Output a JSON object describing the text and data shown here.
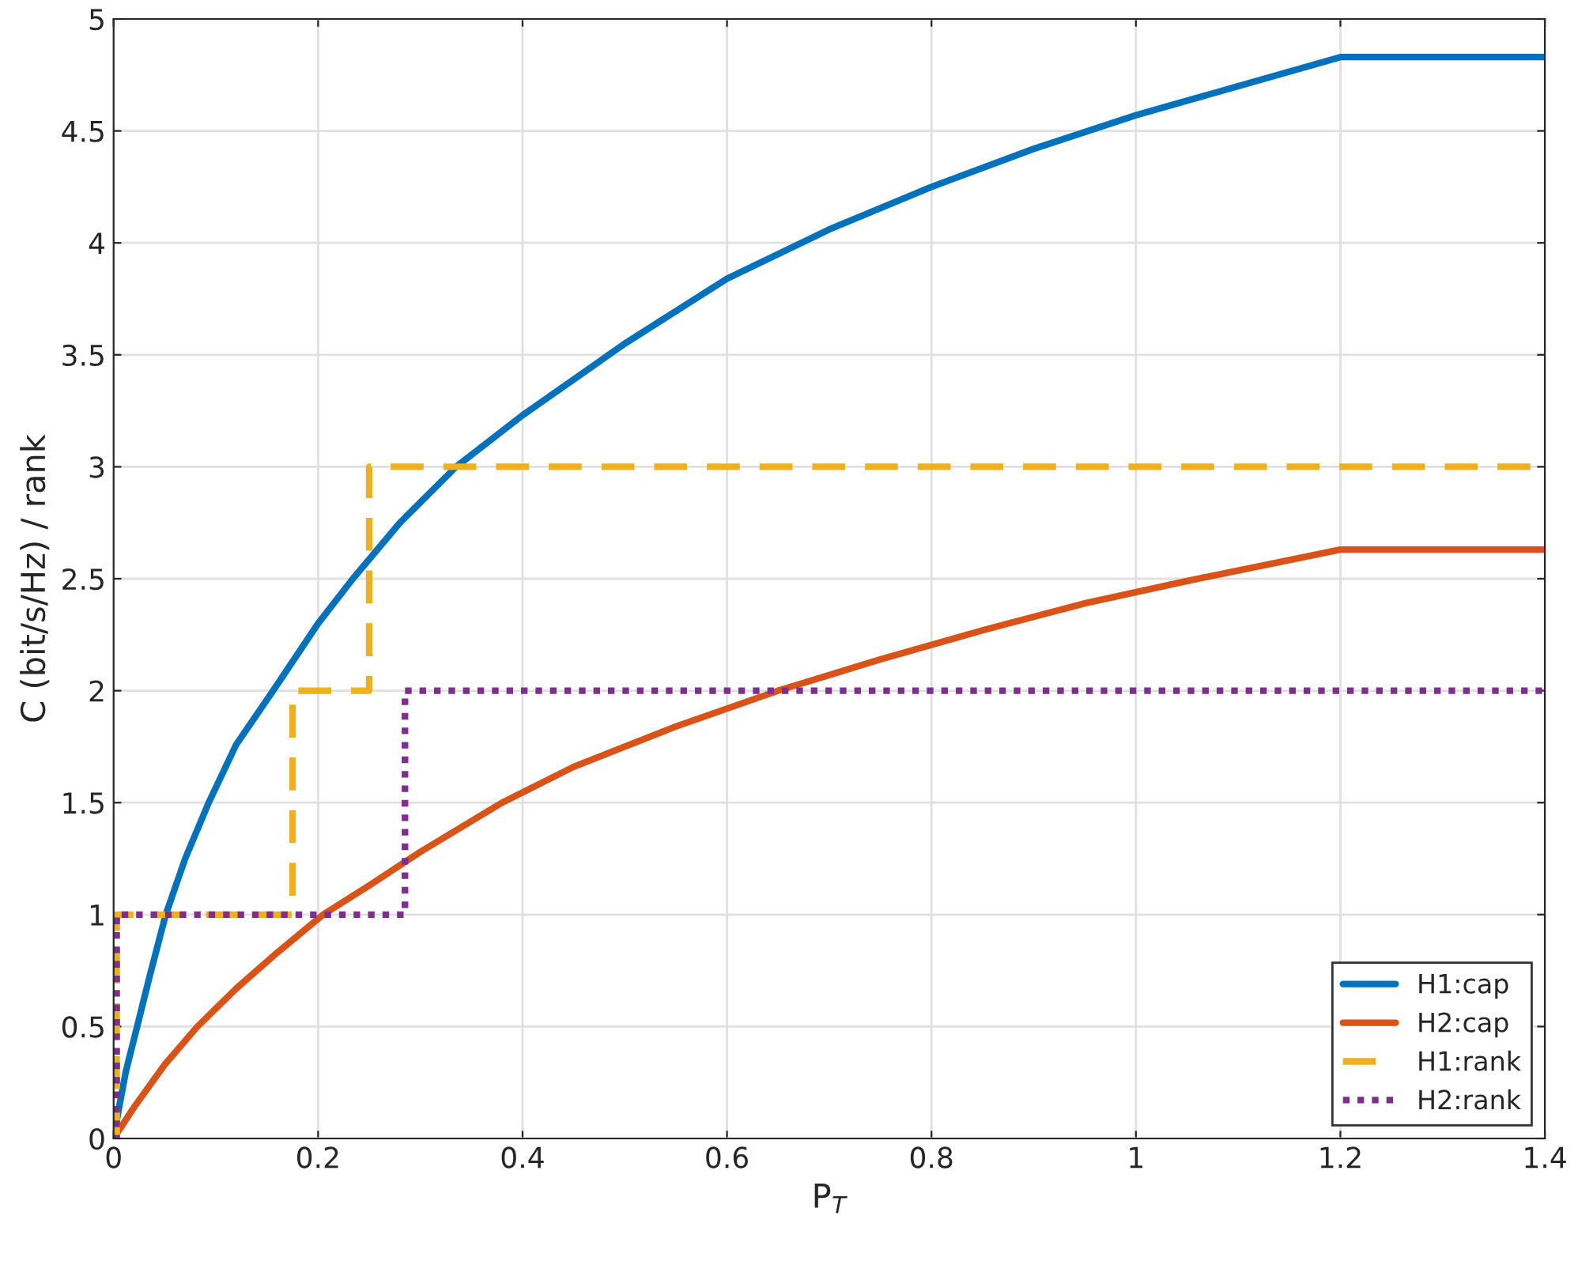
{
  "chart_data": {
    "type": "line",
    "xlabel": "P$_{T}$",
    "ylabel": "C (bit/s/Hz) / rank",
    "xlim": [
      0,
      1.4
    ],
    "xticks": [
      0,
      0.2,
      0.4,
      0.6,
      0.8,
      1,
      1.2,
      1.4
    ],
    "ylim": [
      0,
      5
    ],
    "yticks": [
      0,
      0.5,
      1,
      1.5,
      2,
      2.5,
      3,
      3.5,
      4,
      4.5,
      5
    ],
    "grid": true,
    "legend": "bottom right",
    "series": [
      {
        "name": "H1:cap",
        "color": "#0072bd",
        "line_style": "solid",
        "x": [
          0,
          0.005,
          0.012,
          0.023,
          0.035,
          0.051,
          0.07,
          0.093,
          0.12,
          0.156,
          0.2,
          0.234,
          0.28,
          0.335,
          0.4,
          0.5,
          0.6,
          0.7,
          0.8,
          0.9,
          1.0,
          1.1,
          1.2,
          1.4
        ],
        "values": [
          0,
          0.13,
          0.3,
          0.5,
          0.72,
          1.0,
          1.25,
          1.5,
          1.76,
          2.0,
          2.3,
          2.5,
          2.75,
          3.0,
          3.23,
          3.55,
          3.84,
          4.06,
          4.25,
          4.42,
          4.57,
          4.7,
          4.83,
          4.83
        ]
      },
      {
        "name": "H2:cap",
        "color": "#d95319",
        "line_style": "solid",
        "x": [
          0,
          0.02,
          0.05,
          0.082,
          0.12,
          0.16,
          0.205,
          0.25,
          0.3,
          0.38,
          0.45,
          0.55,
          0.65,
          0.75,
          0.85,
          0.95,
          1.05,
          1.2,
          1.4
        ],
        "values": [
          0,
          0.14,
          0.33,
          0.5,
          0.67,
          0.83,
          1.0,
          1.13,
          1.28,
          1.5,
          1.66,
          1.84,
          2.0,
          2.14,
          2.27,
          2.39,
          2.49,
          2.63,
          2.63
        ]
      },
      {
        "name": "H1:rank",
        "type": "step",
        "color": "#edb120",
        "line_style": "dashed",
        "x": [
          0,
          0.003,
          0.175,
          0.25,
          1.4
        ],
        "values": [
          0,
          1,
          2,
          3,
          3
        ]
      },
      {
        "name": "H2:rank",
        "type": "step",
        "color": "#7e2f8e",
        "line_style": "dotted",
        "x": [
          0,
          0.003,
          0.285,
          1.4
        ],
        "values": [
          0,
          1,
          2,
          2
        ]
      }
    ]
  }
}
